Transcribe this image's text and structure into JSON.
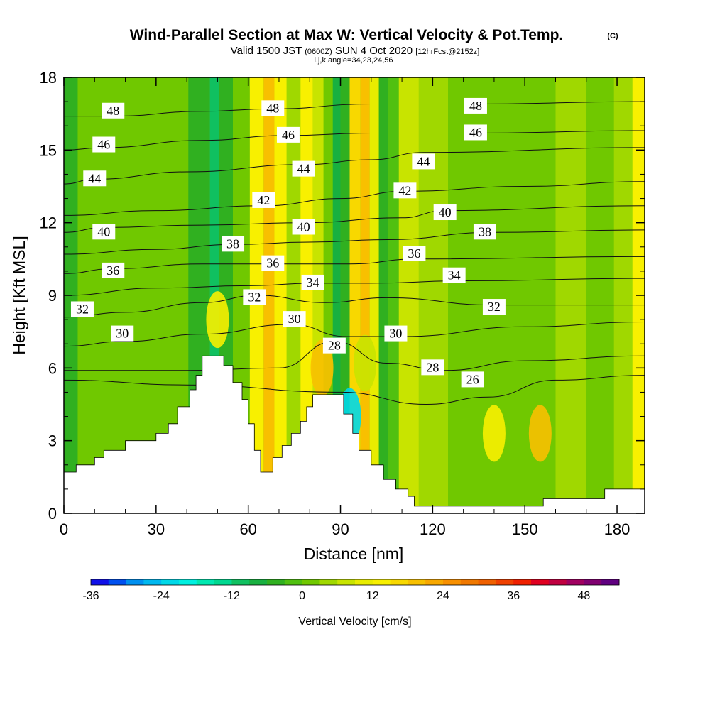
{
  "header": {
    "title": "Wind-Parallel Section at Max W: Vertical Velocity & Pot.Temp.",
    "title_mark": "(C)",
    "valid_main": "Valid 1500 JST",
    "valid_utc": "(0600Z)",
    "valid_date": "SUN 4 Oct 2020",
    "forecast": "[12hrFcst@2152z]",
    "ijk": "i,j,k,angle=34,23,24,56"
  },
  "chart_data": {
    "type": "heatmap",
    "xlabel": "Distance [nm]",
    "ylabel": "Height [Kft MSL]",
    "xlim": [
      0,
      189
    ],
    "ylim": [
      0,
      18
    ],
    "x_ticks": [
      0,
      30,
      60,
      90,
      120,
      150,
      180
    ],
    "y_ticks": [
      0,
      3,
      6,
      9,
      12,
      15,
      18
    ],
    "terrain": [
      [
        0,
        1.7
      ],
      [
        4,
        1.7
      ],
      [
        4,
        2.0
      ],
      [
        10,
        2.0
      ],
      [
        10,
        2.3
      ],
      [
        13,
        2.3
      ],
      [
        13,
        2.6
      ],
      [
        20,
        2.6
      ],
      [
        20,
        3.0
      ],
      [
        30,
        3.0
      ],
      [
        30,
        3.3
      ],
      [
        34,
        3.3
      ],
      [
        34,
        3.7
      ],
      [
        37,
        3.7
      ],
      [
        37,
        4.4
      ],
      [
        41,
        4.4
      ],
      [
        41,
        5.1
      ],
      [
        43,
        5.1
      ],
      [
        43,
        5.7
      ],
      [
        45,
        5.7
      ],
      [
        45,
        6.5
      ],
      [
        52,
        6.5
      ],
      [
        52,
        6.1
      ],
      [
        55,
        6.1
      ],
      [
        55,
        5.4
      ],
      [
        58,
        5.4
      ],
      [
        58,
        4.7
      ],
      [
        60,
        4.7
      ],
      [
        60,
        3.7
      ],
      [
        62,
        3.7
      ],
      [
        62,
        2.6
      ],
      [
        64,
        2.6
      ],
      [
        64,
        1.7
      ],
      [
        68,
        1.7
      ],
      [
        68,
        2.3
      ],
      [
        71,
        2.3
      ],
      [
        71,
        2.8
      ],
      [
        74,
        2.8
      ],
      [
        74,
        3.3
      ],
      [
        77,
        3.3
      ],
      [
        77,
        3.8
      ],
      [
        79,
        3.8
      ],
      [
        79,
        4.4
      ],
      [
        81,
        4.4
      ],
      [
        81,
        4.9
      ],
      [
        91,
        4.9
      ],
      [
        91,
        4.1
      ],
      [
        94,
        4.1
      ],
      [
        94,
        3.3
      ],
      [
        96,
        3.3
      ],
      [
        96,
        2.6
      ],
      [
        100,
        2.6
      ],
      [
        100,
        2.0
      ],
      [
        104,
        2.0
      ],
      [
        104,
        1.4
      ],
      [
        108,
        1.4
      ],
      [
        108,
        1.0
      ],
      [
        112,
        1.0
      ],
      [
        112,
        0.7
      ],
      [
        114,
        0.7
      ],
      [
        114,
        0.3
      ],
      [
        156,
        0.3
      ],
      [
        156,
        0.6
      ],
      [
        176,
        0.6
      ],
      [
        176,
        1.0
      ],
      [
        189,
        1.0
      ]
    ],
    "w_field": [
      {
        "x": 1,
        "w": -6
      },
      {
        "x": 8,
        "w": 0
      },
      {
        "x": 15,
        "w": 2
      },
      {
        "x": 25,
        "w": 0
      },
      {
        "x": 35,
        "w": 2
      },
      {
        "x": 46,
        "w": -4
      },
      {
        "x": 49,
        "w": -12
      },
      {
        "x": 52,
        "w": -6
      },
      {
        "x": 58,
        "w": 0
      },
      {
        "x": 63,
        "w": 14
      },
      {
        "x": 67,
        "w": 20
      },
      {
        "x": 70,
        "w": 14
      },
      {
        "x": 75,
        "w": 4
      },
      {
        "x": 79,
        "w": 12
      },
      {
        "x": 83,
        "w": 6
      },
      {
        "x": 86,
        "w": 0
      },
      {
        "x": 89,
        "w": -8
      },
      {
        "x": 91,
        "w": -4
      },
      {
        "x": 95,
        "w": 16
      },
      {
        "x": 98,
        "w": 20
      },
      {
        "x": 101,
        "w": 10
      },
      {
        "x": 104,
        "w": -6
      },
      {
        "x": 107,
        "w": -2
      },
      {
        "x": 111,
        "w": 6
      },
      {
        "x": 120,
        "w": 4
      },
      {
        "x": 130,
        "w": 2
      },
      {
        "x": 140,
        "w": 0
      },
      {
        "x": 155,
        "w": 2
      },
      {
        "x": 165,
        "w": 4
      },
      {
        "x": 175,
        "w": 2
      },
      {
        "x": 183,
        "w": 4
      },
      {
        "x": 187,
        "w": 12
      }
    ],
    "w_features": [
      {
        "x": 50,
        "y": 8.0,
        "w": 14
      },
      {
        "x": 84,
        "y": 6.0,
        "w": 18
      },
      {
        "x": 93,
        "y": 4.0,
        "w": -24
      },
      {
        "x": 140,
        "y": 3.3,
        "w": 14
      },
      {
        "x": 155,
        "y": 3.3,
        "w": 20
      },
      {
        "x": 98,
        "y": 6.2,
        "w": 6
      }
    ],
    "theta_contours": [
      {
        "value": 26,
        "x": [
          0,
          40,
          90,
          118,
          138,
          160,
          189
        ],
        "y": [
          5.5,
          5.3,
          5.0,
          4.5,
          4.8,
          5.5,
          5.7
        ]
      },
      {
        "value": 28,
        "x": [
          0,
          40,
          70,
          88,
          105,
          124,
          150,
          189
        ],
        "y": [
          5.9,
          5.9,
          6.0,
          7.1,
          6.2,
          5.9,
          6.3,
          6.5
        ]
      },
      {
        "value": 30,
        "x": [
          0,
          20,
          45,
          74,
          92,
          110,
          150,
          189
        ],
        "y": [
          6.9,
          7.1,
          7.4,
          7.8,
          7.3,
          7.3,
          7.7,
          7.9
        ]
      },
      {
        "value": 32,
        "x": [
          0,
          20,
          45,
          63,
          85,
          105,
          140,
          189
        ],
        "y": [
          8.1,
          8.3,
          8.7,
          9.0,
          8.7,
          8.9,
          8.6,
          8.6
        ]
      },
      {
        "value": 34,
        "x": [
          0,
          30,
          60,
          81,
          100,
          130,
          189
        ],
        "y": [
          9.0,
          9.3,
          9.4,
          9.5,
          9.5,
          9.6,
          9.7
        ]
      },
      {
        "value": 36,
        "x": [
          0,
          16,
          45,
          68,
          93,
          115,
          189
        ],
        "y": [
          9.9,
          10.1,
          10.3,
          10.3,
          10.3,
          10.5,
          10.6
        ]
      },
      {
        "value": 38,
        "x": [
          0,
          30,
          55,
          80,
          105,
          140,
          189
        ],
        "y": [
          10.7,
          10.9,
          11.1,
          11.2,
          11.3,
          11.6,
          11.7
        ]
      },
      {
        "value": 40,
        "x": [
          0,
          13,
          45,
          78,
          110,
          124,
          189
        ],
        "y": [
          11.6,
          11.8,
          11.9,
          12.0,
          12.2,
          12.5,
          12.7
        ]
      },
      {
        "value": 42,
        "x": [
          0,
          30,
          65,
          90,
          111,
          150,
          189
        ],
        "y": [
          12.3,
          12.5,
          12.7,
          13.0,
          13.3,
          13.5,
          13.7
        ]
      },
      {
        "value": 44,
        "x": [
          0,
          10,
          40,
          78,
          100,
          117,
          189
        ],
        "y": [
          13.6,
          13.8,
          14.1,
          14.4,
          14.6,
          14.9,
          15.1
        ]
      },
      {
        "value": 46,
        "x": [
          0,
          13,
          45,
          72,
          100,
          133,
          189
        ],
        "y": [
          15.0,
          15.1,
          15.4,
          15.6,
          15.7,
          15.7,
          15.8
        ]
      },
      {
        "value": 48,
        "x": [
          0,
          16,
          45,
          68,
          100,
          133,
          189
        ],
        "y": [
          16.4,
          16.4,
          16.6,
          16.7,
          16.9,
          16.9,
          17.0
        ]
      }
    ],
    "contour_labels": [
      {
        "text": "48",
        "x": 16,
        "y": 16.6
      },
      {
        "text": "48",
        "x": 68,
        "y": 16.7
      },
      {
        "text": "48",
        "x": 134,
        "y": 16.8
      },
      {
        "text": "46",
        "x": 13,
        "y": 15.2
      },
      {
        "text": "46",
        "x": 73,
        "y": 15.6
      },
      {
        "text": "46",
        "x": 134,
        "y": 15.7
      },
      {
        "text": "44",
        "x": 10,
        "y": 13.8
      },
      {
        "text": "44",
        "x": 78,
        "y": 14.2
      },
      {
        "text": "44",
        "x": 117,
        "y": 14.5
      },
      {
        "text": "42",
        "x": 65,
        "y": 12.9
      },
      {
        "text": "42",
        "x": 111,
        "y": 13.3
      },
      {
        "text": "40",
        "x": 13,
        "y": 11.6
      },
      {
        "text": "40",
        "x": 78,
        "y": 11.8
      },
      {
        "text": "40",
        "x": 124,
        "y": 12.4
      },
      {
        "text": "38",
        "x": 55,
        "y": 11.1
      },
      {
        "text": "38",
        "x": 137,
        "y": 11.6
      },
      {
        "text": "36",
        "x": 16,
        "y": 10.0
      },
      {
        "text": "36",
        "x": 68,
        "y": 10.3
      },
      {
        "text": "36",
        "x": 114,
        "y": 10.7
      },
      {
        "text": "34",
        "x": 81,
        "y": 9.5
      },
      {
        "text": "34",
        "x": 127,
        "y": 9.8
      },
      {
        "text": "32",
        "x": 6,
        "y": 8.4
      },
      {
        "text": "32",
        "x": 62,
        "y": 8.9
      },
      {
        "text": "32",
        "x": 140,
        "y": 8.5
      },
      {
        "text": "30",
        "x": 19,
        "y": 7.4
      },
      {
        "text": "30",
        "x": 75,
        "y": 8.0
      },
      {
        "text": "30",
        "x": 108,
        "y": 7.4
      },
      {
        "text": "28",
        "x": 88,
        "y": 6.9
      },
      {
        "text": "28",
        "x": 120,
        "y": 6.0
      },
      {
        "text": "26",
        "x": 133,
        "y": 5.5
      }
    ],
    "colorbar": {
      "label": "Vertical Velocity [cm/s]",
      "tick_labels": [
        "-36",
        "-24",
        "-12",
        "0",
        "12",
        "24",
        "36",
        "48"
      ],
      "tick_values": [
        -36,
        -24,
        -12,
        0,
        12,
        24,
        36,
        48
      ],
      "bins": [
        -36,
        -33,
        -30,
        -27,
        -24,
        -21,
        -18,
        -15,
        -12,
        -9,
        -6,
        -3,
        0,
        3,
        6,
        9,
        12,
        15,
        18,
        21,
        24,
        27,
        30,
        33,
        36,
        39,
        42,
        45,
        48,
        51,
        54
      ],
      "colors": [
        "#1010e8",
        "#0050f0",
        "#0090f0",
        "#00b8f0",
        "#00d8e8",
        "#00f0e0",
        "#00e8b0",
        "#00d890",
        "#10c060",
        "#18b040",
        "#30b020",
        "#50c010",
        "#70c800",
        "#a0d800",
        "#c8e400",
        "#e8ec00",
        "#f8f000",
        "#f8d800",
        "#f8c000",
        "#f8a800",
        "#f89000",
        "#f07800",
        "#f06000",
        "#f04000",
        "#f02000",
        "#e00020",
        "#c00040",
        "#a00060",
        "#800070",
        "#600080"
      ]
    }
  }
}
